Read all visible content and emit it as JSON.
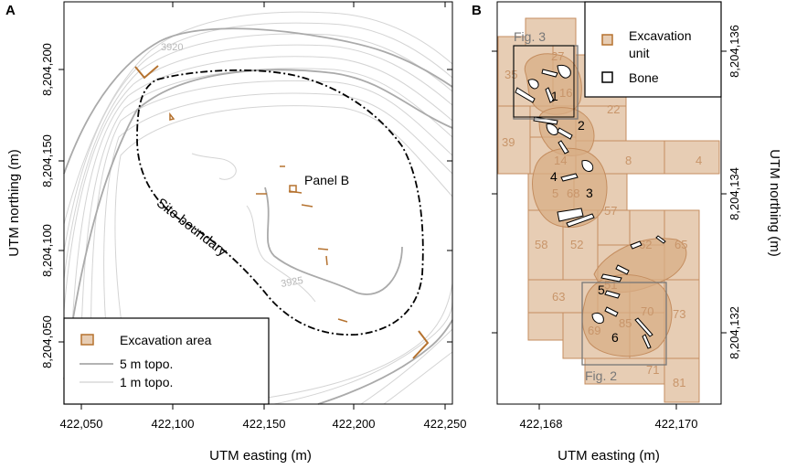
{
  "panel_a": {
    "letter": "A",
    "x_ticks": [
      "422,050",
      "422,100",
      "422,150",
      "422,200",
      "422,250"
    ],
    "y_ticks": [
      "8,204,200",
      "8,204,150",
      "8,204,100",
      "8,204,050"
    ],
    "x_title": "UTM easting (m)",
    "y_title": "UTM northing (m)",
    "contour_labels": [
      "3920",
      "3925"
    ],
    "site_boundary_label": "Site boundary",
    "panel_b_label": "Panel B",
    "legend": {
      "excavation": "Excavation area",
      "topo5": "5 m topo.",
      "topo1": "1 m topo."
    }
  },
  "panel_b": {
    "letter": "B",
    "x_ticks": [
      "422,168",
      "422,170"
    ],
    "y_ticks": [
      "8,204,136",
      "8,204,134",
      "8,204,132"
    ],
    "x_title": "UTM easting (m)",
    "y_title": "UTM northing (m)",
    "fig3_label": "Fig. 3",
    "fig2_label": "Fig. 2",
    "legend": {
      "unit": "Excavation unit",
      "unit_line1": "Excavation",
      "unit_line2": "unit",
      "bone": "Bone"
    },
    "unit_numbers": [
      "27",
      "35",
      "16",
      "22",
      "39",
      "14",
      "8",
      "4",
      "5",
      "68",
      "57",
      "58",
      "52",
      "62",
      "65",
      "63",
      "51",
      "85",
      "70",
      "73",
      "69",
      "71",
      "81"
    ],
    "bone_numbers": [
      "1",
      "2",
      "3",
      "4",
      "5",
      "6"
    ]
  },
  "colors": {
    "excavation_stroke": "#b5722f",
    "unit_fill": "#e7cdb4",
    "unit_fill_dark": "#d9b08b",
    "contour_thin": "#d0d0d0",
    "contour_thick": "#a8a8a8"
  }
}
